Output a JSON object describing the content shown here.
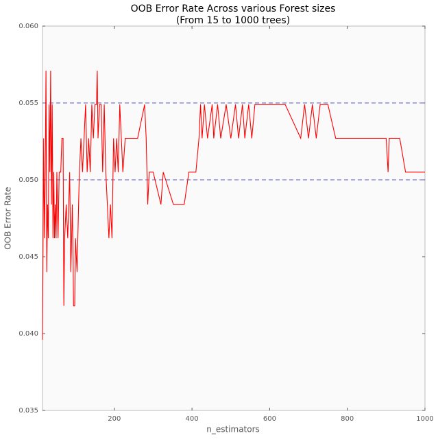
{
  "chart_data": {
    "type": "line",
    "title": "OOB Error Rate Across various Forest sizes",
    "subtitle": "(From 15 to 1000 trees)",
    "x_label": "n_estimators",
    "y_label": "OOB Error Rate",
    "x": [
      15,
      18,
      20,
      22,
      24,
      26,
      28,
      30,
      32,
      34,
      36,
      38,
      40,
      42,
      44,
      46,
      48,
      50,
      52,
      55,
      58,
      62,
      65,
      68,
      70,
      72,
      76,
      80,
      85,
      88,
      92,
      95,
      98,
      100,
      104,
      108,
      110,
      114,
      118,
      122,
      126,
      130,
      134,
      138,
      142,
      146,
      150,
      154,
      156,
      158,
      162,
      166,
      170,
      174,
      178,
      182,
      186,
      190,
      194,
      198,
      202,
      206,
      210,
      214,
      218,
      222,
      228,
      240,
      260,
      278,
      282,
      286,
      290,
      300,
      320,
      326,
      352,
      380,
      392,
      410,
      418,
      422,
      426,
      432,
      440,
      452,
      456,
      466,
      474,
      488,
      500,
      512,
      520,
      530,
      536,
      546,
      554,
      562,
      576,
      600,
      640,
      680,
      690,
      700,
      710,
      720,
      730,
      750,
      770,
      800,
      850,
      900,
      905,
      908,
      935,
      950,
      1000
    ],
    "series": [
      {
        "name": "OOB",
        "color": "#ff0000",
        "values": [
          0.0396,
          0.0527,
          0.0462,
          0.0505,
          0.0571,
          0.044,
          0.0484,
          0.0462,
          0.0549,
          0.0505,
          0.0571,
          0.0484,
          0.0549,
          0.0462,
          0.0505,
          0.0462,
          0.0484,
          0.0462,
          0.0505,
          0.0462,
          0.0505,
          0.0505,
          0.0527,
          0.0527,
          0.0418,
          0.0462,
          0.0484,
          0.0462,
          0.0505,
          0.044,
          0.0484,
          0.0418,
          0.0418,
          0.0462,
          0.044,
          0.0484,
          0.0505,
          0.0527,
          0.0505,
          0.0527,
          0.0549,
          0.0505,
          0.0527,
          0.0505,
          0.0549,
          0.0527,
          0.0549,
          0.0549,
          0.0571,
          0.0527,
          0.0549,
          0.0549,
          0.0505,
          0.0549,
          0.0505,
          0.0484,
          0.0462,
          0.0484,
          0.0462,
          0.0527,
          0.0505,
          0.0527,
          0.0505,
          0.0549,
          0.0527,
          0.0505,
          0.0527,
          0.0527,
          0.0527,
          0.0549,
          0.0527,
          0.0484,
          0.0505,
          0.0505,
          0.0484,
          0.0505,
          0.0484,
          0.0484,
          0.0505,
          0.0505,
          0.0527,
          0.0549,
          0.0527,
          0.0549,
          0.0527,
          0.0549,
          0.0527,
          0.0549,
          0.0527,
          0.0549,
          0.0527,
          0.0549,
          0.0527,
          0.0549,
          0.0527,
          0.0549,
          0.0527,
          0.0549,
          0.0549,
          0.0549,
          0.0549,
          0.0527,
          0.0549,
          0.0527,
          0.0549,
          0.0527,
          0.0549,
          0.0549,
          0.0527,
          0.0527,
          0.0527,
          0.0527,
          0.0505,
          0.0527,
          0.0527,
          0.0505,
          0.0505
        ]
      }
    ],
    "hlines": [
      0.05,
      0.055
    ],
    "hline_color": "#5555cc",
    "xlim": [
      15,
      1000
    ],
    "ylim": [
      0.035,
      0.06
    ],
    "xticks": [
      200,
      400,
      600,
      800,
      1000
    ],
    "yticks": [
      0.035,
      {
        "value": 0.04,
        "label": "0.040"
      },
      0.045,
      {
        "value": 0.05,
        "label": "0.050"
      },
      0.055,
      {
        "value": 0.06,
        "label": "0.060"
      }
    ]
  }
}
